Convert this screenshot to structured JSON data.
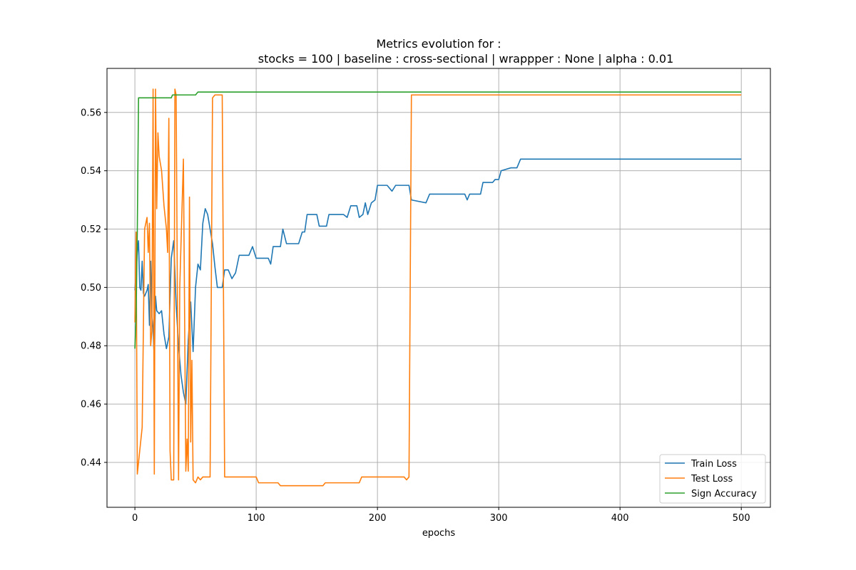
{
  "chart_data": {
    "type": "line",
    "title_line1": "Metrics evolution for :",
    "title_line2": "stocks = 100 | baseline : cross-sectional | wrappper : None | alpha : 0.01",
    "xlabel": "epochs",
    "ylabel": "",
    "xlim": [
      -23,
      524
    ],
    "ylim": [
      0.4246,
      0.5751
    ],
    "xticks": [
      0,
      100,
      200,
      300,
      400,
      500
    ],
    "yticks": [
      0.44,
      0.46,
      0.48,
      0.5,
      0.52,
      0.54,
      0.56
    ],
    "ytick_labels": [
      "0.44",
      "0.46",
      "0.48",
      "0.50",
      "0.52",
      "0.54",
      "0.56"
    ],
    "grid": true,
    "legend_position": "bottom-right",
    "series": [
      {
        "name": "Train Loss",
        "color": "#1f77b4",
        "points": [
          [
            0,
            0.499
          ],
          [
            1,
            0.505
          ],
          [
            2,
            0.512
          ],
          [
            3,
            0.516
          ],
          [
            4,
            0.5
          ],
          [
            5,
            0.499
          ],
          [
            6,
            0.509
          ],
          [
            7,
            0.498
          ],
          [
            8,
            0.497
          ],
          [
            9,
            0.498
          ],
          [
            10,
            0.499
          ],
          [
            11,
            0.501
          ],
          [
            12,
            0.487
          ],
          [
            13,
            0.509
          ],
          [
            14,
            0.49
          ],
          [
            15,
            0.486
          ],
          [
            16,
            0.475
          ],
          [
            17,
            0.497
          ],
          [
            18,
            0.492
          ],
          [
            20,
            0.491
          ],
          [
            22,
            0.492
          ],
          [
            24,
            0.484
          ],
          [
            26,
            0.479
          ],
          [
            28,
            0.483
          ],
          [
            30,
            0.51
          ],
          [
            32,
            0.516
          ],
          [
            34,
            0.494
          ],
          [
            36,
            0.48
          ],
          [
            38,
            0.47
          ],
          [
            40,
            0.464
          ],
          [
            42,
            0.46
          ],
          [
            44,
            0.482
          ],
          [
            46,
            0.495
          ],
          [
            48,
            0.478
          ],
          [
            50,
            0.5
          ],
          [
            52,
            0.508
          ],
          [
            54,
            0.506
          ],
          [
            56,
            0.522
          ],
          [
            58,
            0.527
          ],
          [
            60,
            0.525
          ],
          [
            62,
            0.52
          ],
          [
            64,
            0.515
          ],
          [
            66,
            0.507
          ],
          [
            68,
            0.5
          ],
          [
            72,
            0.5
          ],
          [
            74,
            0.506
          ],
          [
            77,
            0.506
          ],
          [
            80,
            0.503
          ],
          [
            83,
            0.505
          ],
          [
            86,
            0.511
          ],
          [
            90,
            0.511
          ],
          [
            94,
            0.511
          ],
          [
            97,
            0.514
          ],
          [
            100,
            0.51
          ],
          [
            110,
            0.51
          ],
          [
            112,
            0.508
          ],
          [
            114,
            0.514
          ],
          [
            120,
            0.514
          ],
          [
            122,
            0.52
          ],
          [
            125,
            0.515
          ],
          [
            135,
            0.515
          ],
          [
            138,
            0.519
          ],
          [
            140,
            0.519
          ],
          [
            142,
            0.525
          ],
          [
            150,
            0.525
          ],
          [
            152,
            0.521
          ],
          [
            158,
            0.521
          ],
          [
            160,
            0.525
          ],
          [
            172,
            0.525
          ],
          [
            175,
            0.524
          ],
          [
            178,
            0.528
          ],
          [
            183,
            0.528
          ],
          [
            185,
            0.524
          ],
          [
            188,
            0.525
          ],
          [
            190,
            0.529
          ],
          [
            192,
            0.525
          ],
          [
            195,
            0.529
          ],
          [
            198,
            0.53
          ],
          [
            200,
            0.535
          ],
          [
            208,
            0.535
          ],
          [
            212,
            0.533
          ],
          [
            215,
            0.535
          ],
          [
            226,
            0.535
          ],
          [
            228,
            0.53
          ],
          [
            240,
            0.529
          ],
          [
            243,
            0.532
          ],
          [
            272,
            0.532
          ],
          [
            274,
            0.53
          ],
          [
            276,
            0.532
          ],
          [
            285,
            0.532
          ],
          [
            287,
            0.536
          ],
          [
            295,
            0.536
          ],
          [
            297,
            0.537
          ],
          [
            300,
            0.537
          ],
          [
            302,
            0.54
          ],
          [
            310,
            0.541
          ],
          [
            315,
            0.541
          ],
          [
            318,
            0.544
          ],
          [
            500,
            0.544
          ]
        ]
      },
      {
        "name": "Test Loss",
        "color": "#ff7f0e",
        "points": [
          [
            0,
            0.488
          ],
          [
            1,
            0.519
          ],
          [
            2,
            0.436
          ],
          [
            4,
            0.444
          ],
          [
            6,
            0.452
          ],
          [
            8,
            0.52
          ],
          [
            10,
            0.524
          ],
          [
            11,
            0.512
          ],
          [
            12,
            0.522
          ],
          [
            13,
            0.48
          ],
          [
            14,
            0.485
          ],
          [
            15,
            0.568
          ],
          [
            16,
            0.436
          ],
          [
            17,
            0.568
          ],
          [
            18,
            0.527
          ],
          [
            19,
            0.553
          ],
          [
            20,
            0.545
          ],
          [
            22,
            0.54
          ],
          [
            24,
            0.528
          ],
          [
            26,
            0.52
          ],
          [
            27,
            0.512
          ],
          [
            28,
            0.558
          ],
          [
            29,
            0.444
          ],
          [
            30,
            0.434
          ],
          [
            32,
            0.434
          ],
          [
            33,
            0.568
          ],
          [
            34,
            0.566
          ],
          [
            36,
            0.434
          ],
          [
            37,
            0.5
          ],
          [
            40,
            0.544
          ],
          [
            42,
            0.437
          ],
          [
            43,
            0.448
          ],
          [
            44,
            0.437
          ],
          [
            45,
            0.531
          ],
          [
            46,
            0.447
          ],
          [
            47,
            0.475
          ],
          [
            48,
            0.434
          ],
          [
            50,
            0.433
          ],
          [
            52,
            0.435
          ],
          [
            54,
            0.434
          ],
          [
            56,
            0.435
          ],
          [
            62,
            0.435
          ],
          [
            64,
            0.565
          ],
          [
            66,
            0.566
          ],
          [
            72,
            0.566
          ],
          [
            74,
            0.435
          ],
          [
            100,
            0.435
          ],
          [
            102,
            0.433
          ],
          [
            118,
            0.433
          ],
          [
            120,
            0.432
          ],
          [
            155,
            0.432
          ],
          [
            157,
            0.433
          ],
          [
            185,
            0.433
          ],
          [
            187,
            0.435
          ],
          [
            205,
            0.435
          ],
          [
            222,
            0.435
          ],
          [
            224,
            0.434
          ],
          [
            226,
            0.435
          ],
          [
            228,
            0.566
          ],
          [
            500,
            0.566
          ]
        ]
      },
      {
        "name": "Sign Accuracy",
        "color": "#2ca02c",
        "points": [
          [
            0,
            0.479
          ],
          [
            1,
            0.49
          ],
          [
            2,
            0.52
          ],
          [
            3,
            0.565
          ],
          [
            30,
            0.565
          ],
          [
            31,
            0.566
          ],
          [
            34,
            0.566
          ],
          [
            36,
            0.566
          ],
          [
            50,
            0.566
          ],
          [
            52,
            0.567
          ],
          [
            100,
            0.567
          ],
          [
            102,
            0.567
          ],
          [
            120,
            0.567
          ],
          [
            500,
            0.567
          ]
        ]
      }
    ]
  }
}
